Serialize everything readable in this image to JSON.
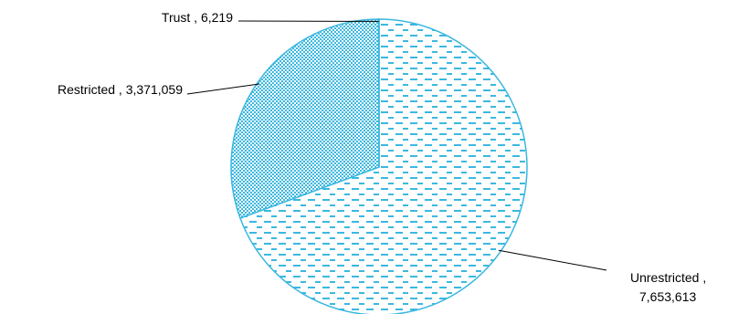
{
  "chart_data": {
    "type": "pie",
    "title": "",
    "slices": [
      {
        "label": "Unrestricted",
        "value": 7653613,
        "value_text": "7,653,613",
        "pattern": "dashes"
      },
      {
        "label": "Restricted",
        "value": 3371059,
        "value_text": "3,371,059",
        "pattern": "dense-dots"
      },
      {
        "label": "Trust",
        "value": 6219,
        "value_text": "6,219",
        "pattern": "dashes"
      }
    ],
    "legend": "none",
    "data_labels": "category , value with leader lines",
    "colors": {
      "fill": "#3bb8e0",
      "outline": "#3bb8e0",
      "background": "#ffffff"
    }
  }
}
